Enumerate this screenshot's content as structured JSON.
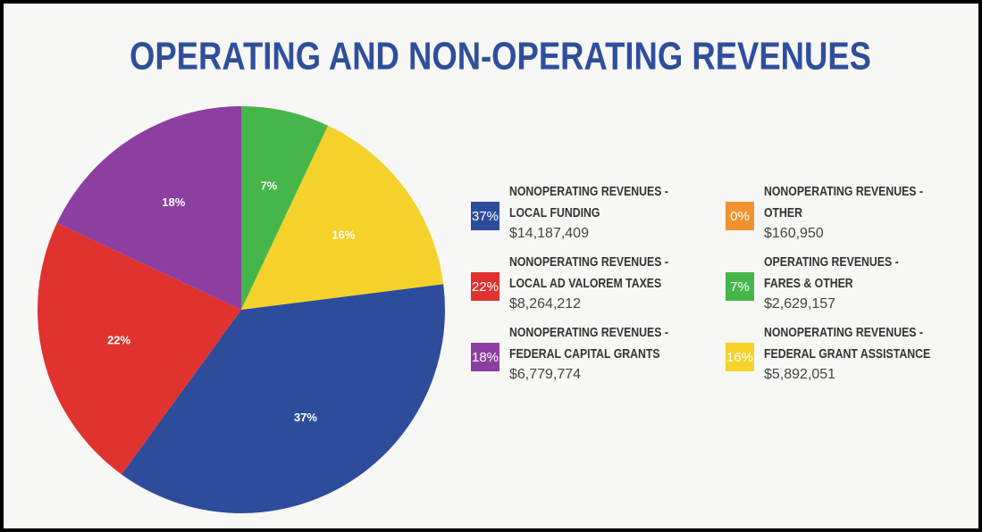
{
  "chart_data": {
    "type": "pie",
    "title": "OPERATING AND NON-OPERATING REVENUES",
    "categories": [
      [
        "NONOPERATING REVENUES -",
        "OTHER"
      ],
      [
        "OPERATING REVENUES -",
        "FARES & OTHER"
      ],
      [
        "NONOPERATING REVENUES -",
        "FEDERAL GRANT ASSISTANCE"
      ],
      [
        "NONOPERATING REVENUES -",
        "LOCAL FUNDING"
      ],
      [
        "NONOPERATING REVENUES -",
        "LOCAL AD VALOREM TAXES"
      ],
      [
        "NONOPERATING REVENUES -",
        "FEDERAL CAPITAL GRANTS"
      ]
    ],
    "values": [
      0,
      7,
      16,
      37,
      22,
      18
    ],
    "value_labels": [
      "0%",
      "7%",
      "16%",
      "37%",
      "22%",
      "18%"
    ],
    "amounts": [
      "$160,950",
      "$2,629,157",
      "$5,892,051",
      "$14,187,409",
      "$8,264,212",
      "$6,779,774"
    ],
    "colors": [
      "#ef9330",
      "#46b64a",
      "#f4d22a",
      "#2d4c9c",
      "#e0322f",
      "#8c3fa1"
    ]
  }
}
